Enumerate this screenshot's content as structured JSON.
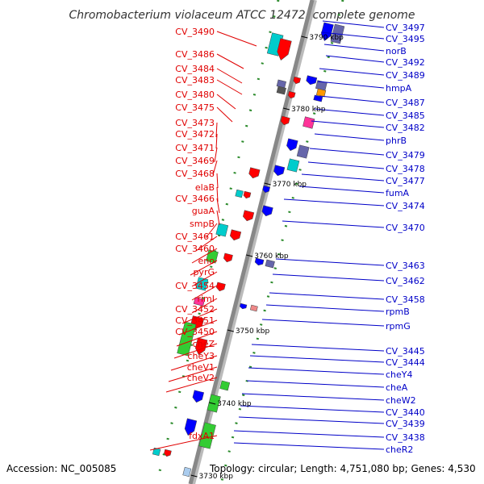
{
  "title": "Chromobacterium violaceum ATCC 12472, complete genome",
  "accession": "Accession: NC_005085",
  "topology": "Topology: circular; Length: 4,751,080 bp; Genes: 4,530",
  "colors": {
    "left_labels": "#e00000",
    "right_labels": "#0000c8",
    "backbone": "#888888",
    "forward_cds": "#ff0000",
    "reverse_cds": "#0000ff",
    "rna": "#00cccc",
    "highlight_green": "#33cc33",
    "highlight_purple": "#6666aa",
    "highlight_pink": "#ff3399",
    "highlight_orange": "#ff9900"
  },
  "scale_ticks": [
    "3790 kbp",
    "3780 kbp",
    "3770 kbp",
    "3760 kbp",
    "3750 kbp",
    "3740 kbp",
    "3730 kbp"
  ],
  "left_labels": [
    "CV_3490",
    "CV_3486",
    "CV_3484",
    "CV_3483",
    "CV_3480",
    "CV_3475",
    "CV_3473",
    "CV_3472",
    "CV_3471",
    "CV_3469",
    "CV_3468",
    "elaB",
    "CV_3466",
    "guaA",
    "smpB",
    "CV_3461",
    "CV_3460",
    "eno",
    "pyrG",
    "CV_3454",
    "rimI",
    "CV_3452",
    "CV_3451",
    "CV_3450",
    "cheZ",
    "cheY3",
    "cheV1",
    "cheV2",
    "fdxA1"
  ],
  "right_labels": [
    "CV_3497",
    "CV_3495",
    "norB",
    "CV_3492",
    "CV_3489",
    "hmpA",
    "CV_3487",
    "CV_3485",
    "CV_3482",
    "phrB",
    "CV_3479",
    "CV_3478",
    "CV_3477",
    "fumA",
    "CV_3474",
    "CV_3470",
    "CV_3463",
    "CV_3462",
    "CV_3458",
    "rpmB",
    "rpmG",
    "CV_3445",
    "CV_3444",
    "cheY4",
    "cheA",
    "cheW2",
    "CV_3440",
    "CV_3439",
    "CV_3438",
    "cheR2"
  ]
}
